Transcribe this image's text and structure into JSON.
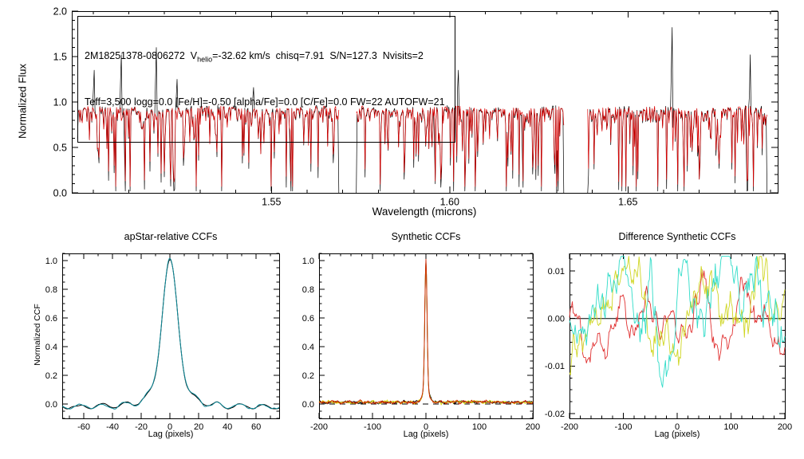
{
  "figure": {
    "background": "#ffffff",
    "foreground": "#000000"
  },
  "annotation": {
    "line1_prefix": "2M18251378-0806272  V",
    "line1_sub": "helio",
    "line1_suffix": "=-32.62 km/s  chisq=7.91  S/N=127.3  Nvisits=2",
    "line2": "Teff=3,500 logg=0.0 [Fe/H]=-0.50 [alpha/Fe]=0.0 [C/Fe]=0.0 FW=22 AUTOFW=21"
  },
  "chart_data": [
    {
      "type": "line",
      "title": "",
      "xlabel": "Wavelength (microns)",
      "ylabel": "Normalized Flux",
      "xlim": [
        1.494,
        1.692
      ],
      "ylim": [
        0.0,
        2.0
      ],
      "xticks": {
        "values": [
          1.55,
          1.6,
          1.65
        ],
        "labels": [
          "1.55",
          "1.60",
          "1.65"
        ],
        "minor": 0.01
      },
      "yticks": {
        "values": [
          0.0,
          0.5,
          1.0,
          1.5,
          2.0
        ],
        "labels": [
          "0.0",
          "0.5",
          "1.0",
          "1.5",
          "2.0"
        ],
        "minor": 0.1
      },
      "series": [
        {
          "name": "observed spectrum",
          "color": "#000000"
        },
        {
          "name": "best-fit synthetic spectrum",
          "color": "#dd0000"
        }
      ],
      "segments": [
        [
          1.4956,
          1.5689
        ],
        [
          1.5738,
          1.632
        ],
        [
          1.6387,
          1.689
        ]
      ],
      "baseline": 0.93,
      "noise": 0.05,
      "absorption_depth_power": 7,
      "edge_start_flux": [
        0.6,
        0.0,
        0.0
      ],
      "edge_end_flux": [
        0.0,
        0.0,
        0.0
      ],
      "emission_lines": [
        {
          "wavelength": 1.5003,
          "flux": 1.35
        },
        {
          "wavelength": 1.5079,
          "flux": 1.52
        },
        {
          "wavelength": 1.5177,
          "flux": 1.6
        },
        {
          "wavelength": 1.5235,
          "flux": 1.25
        },
        {
          "wavelength": 1.545,
          "flux": 1.16
        },
        {
          "wavelength": 1.6025,
          "flux": 1.35
        },
        {
          "wavelength": 1.6625,
          "flux": 1.82
        },
        {
          "wavelength": 1.6842,
          "flux": 1.52
        }
      ],
      "deep_lines": [
        {
          "wavelength": 1.509,
          "flux": 0.02
        },
        {
          "wavelength": 1.5555,
          "flux": 0.02
        },
        {
          "wavelength": 1.596,
          "flux": 0.1
        },
        {
          "wavelength": 1.6205,
          "flux": 0.06
        },
        {
          "wavelength": 1.6305,
          "flux": 0.02
        },
        {
          "wavelength": 1.67,
          "flux": 0.15
        },
        {
          "wavelength": 1.6835,
          "flux": 0.02
        }
      ],
      "seed": 1337
    },
    {
      "type": "line",
      "title": "apStar-relative CCFs",
      "xlabel": "Lag (pixels)",
      "ylabel": "Normalized CCF",
      "xlim": [
        -75,
        76
      ],
      "ylim": [
        -0.1,
        1.05
      ],
      "xticks": {
        "values": [
          -60,
          -40,
          -20,
          0,
          20,
          40,
          60
        ],
        "labels": [
          "-60",
          "-40",
          "-20",
          "0",
          "20",
          "40",
          "60"
        ],
        "minor": 10
      },
      "yticks": {
        "values": [
          0.0,
          0.2,
          0.4,
          0.6,
          0.8,
          1.0
        ],
        "labels": [
          "0.0",
          "0.2",
          "0.4",
          "0.6",
          "0.8",
          "1.0"
        ],
        "minor": 0.05
      },
      "peak": {
        "center": 0,
        "height": 1.02,
        "sigma": 5.2,
        "pedestal_height": 0.13,
        "pedestal_sigma": 13
      },
      "sidelobe": {
        "amplitude": 0.03,
        "period": 16
      },
      "offset": -0.008,
      "edge_droop": 0.012,
      "noise_amp": 0.008,
      "series": [
        {
          "name": "apStar combined CCF",
          "color": "#000000"
        },
        {
          "name": "visit CCF",
          "color": "#0b8a99"
        }
      ],
      "seed": 4242
    },
    {
      "type": "line",
      "title": "Synthetic CCFs",
      "xlabel": "Lag (pixels)",
      "ylabel": "",
      "xlim": [
        -200,
        200
      ],
      "ylim": [
        -0.1,
        1.05
      ],
      "xticks": {
        "values": [
          -200,
          -100,
          0,
          100,
          200
        ],
        "labels": [
          "-200",
          "-100",
          "0",
          "100",
          "200"
        ],
        "minor": 20
      },
      "yticks": {
        "values": [
          0.0,
          0.2,
          0.4,
          0.6,
          0.8,
          1.0
        ],
        "labels": [
          "0.0",
          "0.2",
          "0.4",
          "0.6",
          "0.8",
          "1.0"
        ],
        "minor": 0.05
      },
      "peak": {
        "center": 0,
        "height": 0.99,
        "sigma": 2.1,
        "pedestal_height": 0.1,
        "pedestal_sigma": 5.5
      },
      "noise_floor_level": 0.013,
      "noise_amp": 0.013,
      "rough_amp": 0.006,
      "zero_line": "dashed",
      "series": [
        {
          "name": "synthetic CCF visit A",
          "color": "#000000",
          "scale": 0.99
        },
        {
          "name": "synthetic CCF visit B",
          "color": "#d9d900",
          "scale": 0.985
        },
        {
          "name": "synthetic CCF combined",
          "color": "#cc2200",
          "scale": 1.0
        }
      ],
      "seed": 999
    },
    {
      "type": "line",
      "title": "Difference Synthetic CCFs",
      "xlabel": "Lag (pixels)",
      "ylabel": "",
      "xlim": [
        -200,
        200
      ],
      "ylim": [
        -0.021,
        0.0137
      ],
      "xticks": {
        "values": [
          -200,
          -100,
          0,
          100,
          200
        ],
        "labels": [
          "-200",
          "-100",
          "0",
          "100",
          "200"
        ],
        "minor": 20
      },
      "yticks": {
        "values": [
          -0.02,
          -0.01,
          0.0,
          0.01
        ],
        "labels": [
          "-0.02",
          "-0.01",
          "0.00",
          "0.01"
        ],
        "minor": 0.0025
      },
      "zero_line": "solid",
      "series": [
        {
          "name": "difference CCF red",
          "color": "#e03030",
          "amplitude": 0.011,
          "seed": 101
        },
        {
          "name": "difference CCF yellow",
          "color": "#cfd622",
          "amplitude": 0.016,
          "seed": 202
        },
        {
          "name": "difference CCF cyan",
          "color": "#2fdcc8",
          "amplitude": 0.019,
          "seed": 303
        }
      ]
    }
  ]
}
